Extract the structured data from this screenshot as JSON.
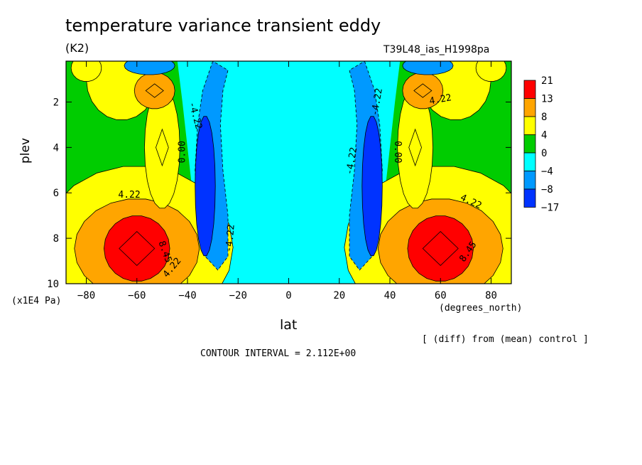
{
  "chart_data": {
    "type": "heatmap",
    "subtype": "filled-contour",
    "title": "temperature variance transient eddy",
    "units": "(K2)",
    "run_label": "T39L48_ias_H1998pa",
    "xlabel": "lat",
    "xunits": "(degrees_north)",
    "ylabel": "plev",
    "yunits": "(x1E4 Pa)",
    "xlim": [
      -88,
      88
    ],
    "ylim": [
      10,
      0.2
    ],
    "x_ticks": [
      -80,
      -60,
      -40,
      -20,
      0,
      20,
      40,
      60,
      80
    ],
    "y_ticks": [
      2,
      4,
      6,
      8,
      10
    ],
    "colorbar": {
      "labels": [
        "21",
        "13",
        "8",
        "4",
        "0",
        "-4",
        "-8",
        "-17"
      ],
      "colors": [
        "#ff0000",
        "#ffa500",
        "#ffff00",
        "#00cc00",
        "#00ffff",
        "#0099ff",
        "#0033ff"
      ]
    },
    "contour_labels": [
      "4.22",
      "0.00",
      "-4.22",
      "8.45"
    ],
    "features": [
      {
        "kind": "max",
        "x": -60,
        "y": 8.45,
        "level": "21"
      },
      {
        "kind": "max",
        "x": 60,
        "y": 8.45,
        "level": "21"
      },
      {
        "kind": "max",
        "x": -52,
        "y": 1.5,
        "level": "8"
      },
      {
        "kind": "max",
        "x": 52,
        "y": 1.5,
        "level": "8"
      },
      {
        "kind": "max",
        "x": -50,
        "y": 4.0,
        "level": "4"
      },
      {
        "kind": "max",
        "x": 50,
        "y": 4.0,
        "level": "4"
      },
      {
        "kind": "min",
        "x": -33,
        "y": 5.7,
        "level": "-8"
      },
      {
        "kind": "min",
        "x": 33,
        "y": 5.7,
        "level": "-8"
      }
    ],
    "footer_note": "[ (diff) from (mean) control ]",
    "contour_interval": "CONTOUR INTERVAL = 2.112E+00"
  }
}
